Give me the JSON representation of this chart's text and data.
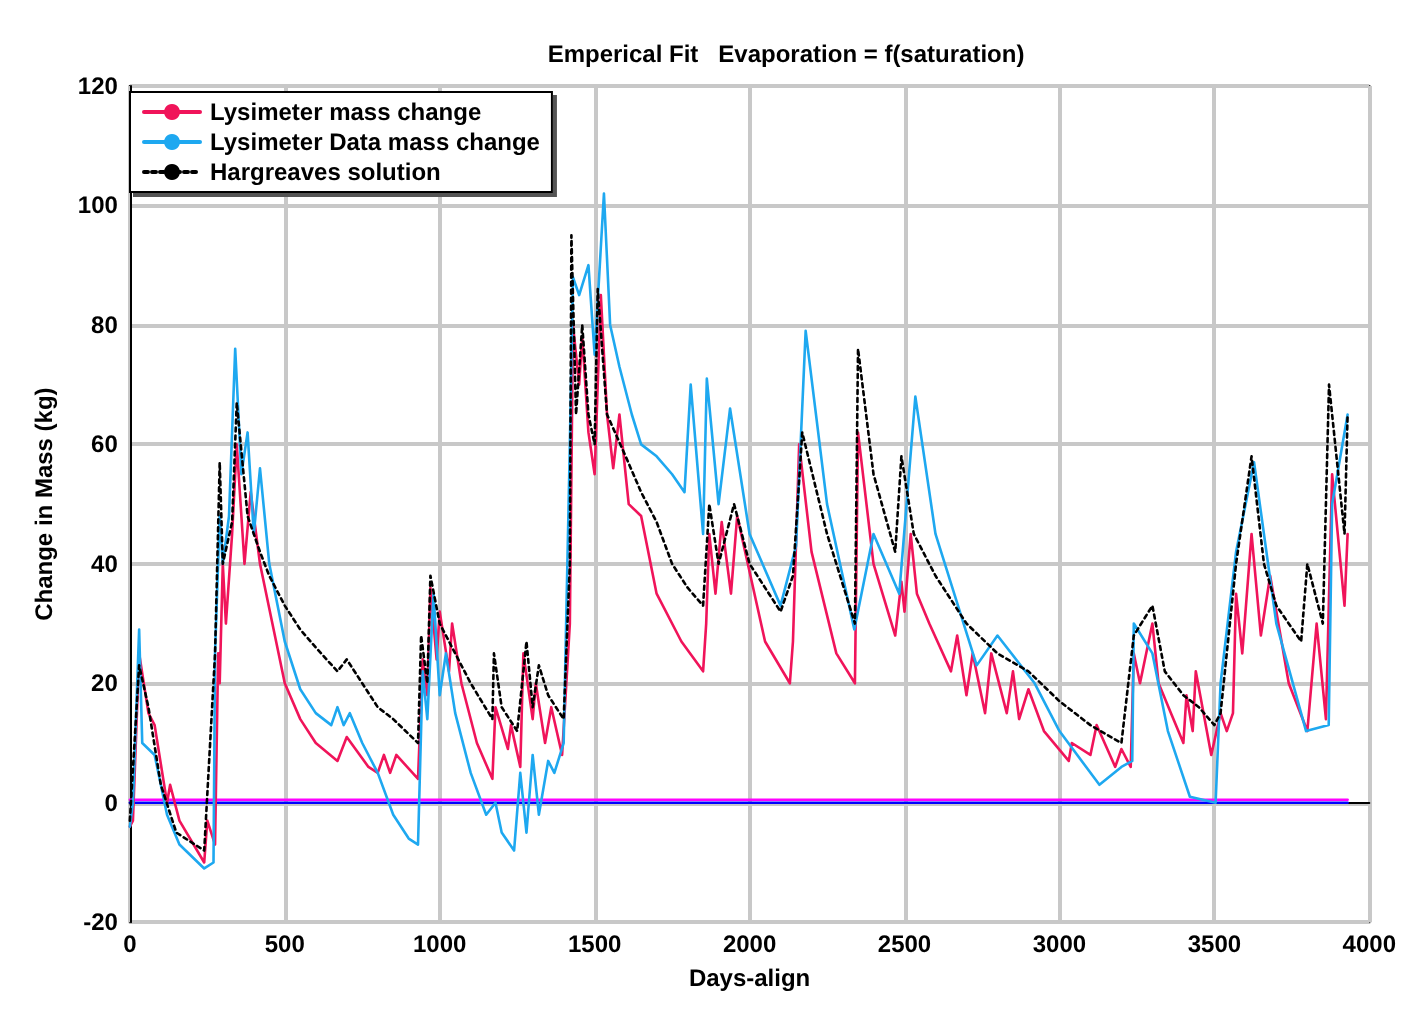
{
  "chart_data": {
    "type": "line",
    "title": "Emperical Fit   Evaporation = f(saturation)",
    "xlabel": "Days-align",
    "ylabel": "Change in Mass (kg)",
    "xlim": [
      0,
      4000
    ],
    "xticks": [
      0,
      500,
      1000,
      1500,
      2000,
      2500,
      3000,
      3500,
      4000
    ],
    "ylim": [
      -20,
      120
    ],
    "yticks": [
      -20,
      0,
      20,
      40,
      60,
      80,
      100,
      120
    ],
    "grid": true,
    "legend": "top left",
    "marker": "none",
    "series": [
      {
        "name": "Lysimeter mass change",
        "color": "#f0145a",
        "line_style": "solid",
        "x": [
          0,
          10,
          30,
          60,
          80,
          120,
          130,
          160,
          240,
          250,
          275,
          285,
          290,
          300,
          310,
          330,
          345,
          370,
          390,
          420,
          460,
          500,
          550,
          600,
          670,
          700,
          770,
          800,
          820,
          840,
          860,
          930,
          945,
          960,
          970,
          990,
          1000,
          1030,
          1040,
          1070,
          1120,
          1170,
          1180,
          1220,
          1230,
          1260,
          1270,
          1300,
          1310,
          1340,
          1360,
          1395,
          1420,
          1430,
          1450,
          1460,
          1480,
          1500,
          1520,
          1540,
          1560,
          1580,
          1610,
          1650,
          1700,
          1780,
          1850,
          1860,
          1870,
          1890,
          1910,
          1940,
          1960,
          2050,
          2130,
          2140,
          2160,
          2200,
          2280,
          2340,
          2350,
          2400,
          2470,
          2490,
          2500,
          2520,
          2540,
          2580,
          2650,
          2670,
          2700,
          2720,
          2760,
          2780,
          2830,
          2850,
          2870,
          2900,
          2950,
          3030,
          3040,
          3100,
          3120,
          3180,
          3200,
          3230,
          3240,
          3260,
          3300,
          3320,
          3360,
          3400,
          3410,
          3430,
          3440,
          3490,
          3520,
          3540,
          3560,
          3570,
          3590,
          3620,
          3650,
          3680,
          3740,
          3800,
          3830,
          3860,
          3880,
          3920,
          3930
        ],
        "values": [
          -4,
          -3,
          25,
          15,
          13,
          0,
          3,
          -3,
          -10,
          -3,
          -7,
          25,
          20,
          40,
          30,
          45,
          60,
          40,
          52,
          40,
          30,
          20,
          14,
          10,
          7,
          11,
          6,
          5,
          8,
          5,
          8,
          4,
          24,
          18,
          36,
          24,
          32,
          22,
          30,
          20,
          10,
          4,
          16,
          9,
          13,
          6,
          25,
          14,
          20,
          10,
          16,
          8,
          30,
          80,
          70,
          78,
          62,
          55,
          85,
          65,
          56,
          65,
          50,
          48,
          35,
          27,
          22,
          30,
          45,
          35,
          47,
          35,
          48,
          27,
          20,
          27,
          60,
          42,
          25,
          20,
          62,
          40,
          28,
          37,
          32,
          45,
          35,
          30,
          22,
          28,
          18,
          25,
          15,
          25,
          15,
          22,
          14,
          19,
          12,
          7,
          10,
          8,
          13,
          6,
          9,
          6,
          25,
          20,
          30,
          20,
          15,
          10,
          18,
          12,
          22,
          8,
          15,
          12,
          15,
          35,
          25,
          45,
          28,
          38,
          20,
          12,
          30,
          14,
          55,
          33,
          45
        ]
      },
      {
        "name": "Lysimeter Data mass change",
        "color": "#1ea8f0",
        "line_style": "solid",
        "x": [
          0,
          10,
          30,
          40,
          80,
          120,
          160,
          240,
          270,
          275,
          290,
          300,
          320,
          340,
          360,
          380,
          400,
          420,
          450,
          500,
          550,
          600,
          650,
          670,
          690,
          710,
          750,
          800,
          850,
          900,
          930,
          945,
          960,
          980,
          1000,
          1020,
          1050,
          1100,
          1150,
          1180,
          1200,
          1240,
          1260,
          1280,
          1300,
          1320,
          1350,
          1370,
          1400,
          1420,
          1430,
          1450,
          1480,
          1500,
          1530,
          1550,
          1580,
          1620,
          1650,
          1700,
          1750,
          1790,
          1810,
          1850,
          1862,
          1900,
          1937,
          2000,
          2100,
          2150,
          2181,
          2250,
          2338,
          2400,
          2483,
          2535,
          2600,
          2733,
          2800,
          2920,
          3000,
          3129,
          3200,
          3235,
          3240,
          3300,
          3350,
          3421,
          3504,
          3520,
          3570,
          3628,
          3700,
          3796,
          3869,
          3880,
          3930
        ],
        "values": [
          -4,
          0,
          29,
          10,
          8,
          -2,
          -7,
          -11,
          -10,
          25,
          48,
          40,
          48,
          76,
          55,
          62,
          45,
          56,
          40,
          27,
          19,
          15,
          13,
          16,
          13,
          15,
          10,
          5,
          -2,
          -6,
          -7,
          22,
          14,
          35,
          18,
          25,
          15,
          5,
          -2,
          0,
          -5,
          -8,
          5,
          -5,
          8,
          -2,
          7,
          5,
          10,
          60,
          88,
          85,
          90,
          75,
          102,
          80,
          73,
          65,
          60,
          58,
          55,
          52,
          70,
          45,
          71,
          50,
          66,
          45,
          33,
          43,
          79,
          50,
          29,
          45,
          35,
          68,
          45,
          23,
          28,
          20,
          12,
          3,
          6,
          7,
          30,
          25,
          12,
          1,
          0,
          20,
          42,
          57,
          30,
          12,
          13,
          50,
          65
        ]
      },
      {
        "name": "Hargreaves solution",
        "color": "#000000",
        "line_style": "dotted",
        "x": [
          0,
          30,
          60,
          100,
          150,
          240,
          275,
          290,
          300,
          330,
          345,
          380,
          420,
          450,
          500,
          550,
          600,
          670,
          700,
          750,
          800,
          850,
          930,
          940,
          960,
          970,
          1000,
          1050,
          1100,
          1170,
          1175,
          1200,
          1250,
          1280,
          1300,
          1320,
          1350,
          1400,
          1420,
          1425,
          1440,
          1460,
          1480,
          1500,
          1510,
          1540,
          1600,
          1650,
          1700,
          1750,
          1800,
          1850,
          1870,
          1900,
          1950,
          2000,
          2100,
          2140,
          2170,
          2250,
          2340,
          2350,
          2400,
          2470,
          2490,
          2530,
          2600,
          2700,
          2800,
          2900,
          3000,
          3100,
          3200,
          3240,
          3300,
          3340,
          3400,
          3450,
          3500,
          3520,
          3570,
          3620,
          3660,
          3700,
          3780,
          3800,
          3850,
          3870,
          3920,
          3930
        ],
        "values": [
          -3,
          23,
          16,
          3,
          -5,
          -8,
          25,
          57,
          40,
          47,
          67,
          48,
          42,
          38,
          33,
          29,
          26,
          22,
          24,
          20,
          16,
          14,
          10,
          28,
          20,
          38,
          30,
          25,
          20,
          14,
          25,
          16,
          12,
          27,
          16,
          23,
          18,
          14,
          40,
          95,
          65,
          80,
          65,
          60,
          86,
          65,
          58,
          52,
          47,
          40,
          36,
          33,
          50,
          40,
          50,
          40,
          32,
          38,
          62,
          45,
          30,
          76,
          55,
          42,
          58,
          45,
          38,
          30,
          25,
          22,
          17,
          13,
          10,
          28,
          33,
          22,
          18,
          16,
          13,
          15,
          40,
          58,
          40,
          33,
          27,
          40,
          30,
          70,
          45,
          65
        ]
      },
      {
        "color": "#ff00ff",
        "line_style": "solid",
        "x": [
          0,
          3930
        ],
        "values": [
          0.5,
          0.5
        ]
      },
      {
        "color": "#0000ff",
        "line_style": "solid",
        "x": [
          0,
          3930
        ],
        "values": [
          0,
          0
        ]
      }
    ]
  }
}
